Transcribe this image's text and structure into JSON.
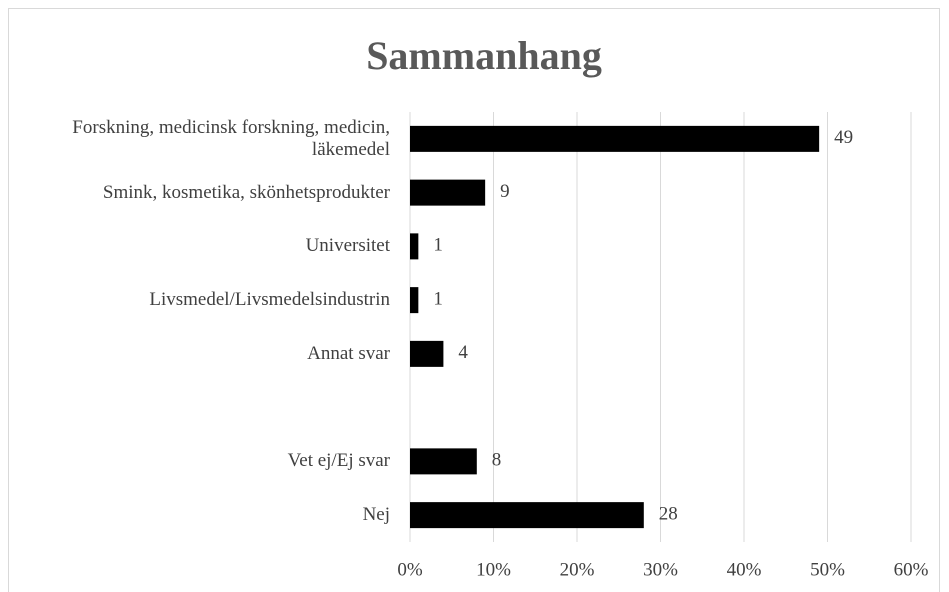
{
  "chart_data": {
    "type": "barh",
    "title": "Sammanhang",
    "categories": [
      "Forskning, medicinsk forskning, medicin, läkemedel",
      "Smink, kosmetika, skönhetsprodukter",
      "Universitet",
      "Livsmedel/Livsmedelsindustrin",
      "Annat svar",
      null,
      "Vet ej/Ej svar",
      "Nej"
    ],
    "values": [
      49,
      9,
      1,
      1,
      4,
      null,
      8,
      28
    ],
    "color": "#000000",
    "xlim": [
      0,
      60
    ],
    "xticks": [
      {
        "value": 0,
        "label": "0%"
      },
      {
        "value": 10,
        "label": "10%"
      },
      {
        "value": 20,
        "label": "20%"
      },
      {
        "value": 30,
        "label": "30%"
      },
      {
        "value": 40,
        "label": "40%"
      },
      {
        "value": 50,
        "label": "50%"
      },
      {
        "value": 60,
        "label": "60%"
      }
    ],
    "grid": true
  }
}
